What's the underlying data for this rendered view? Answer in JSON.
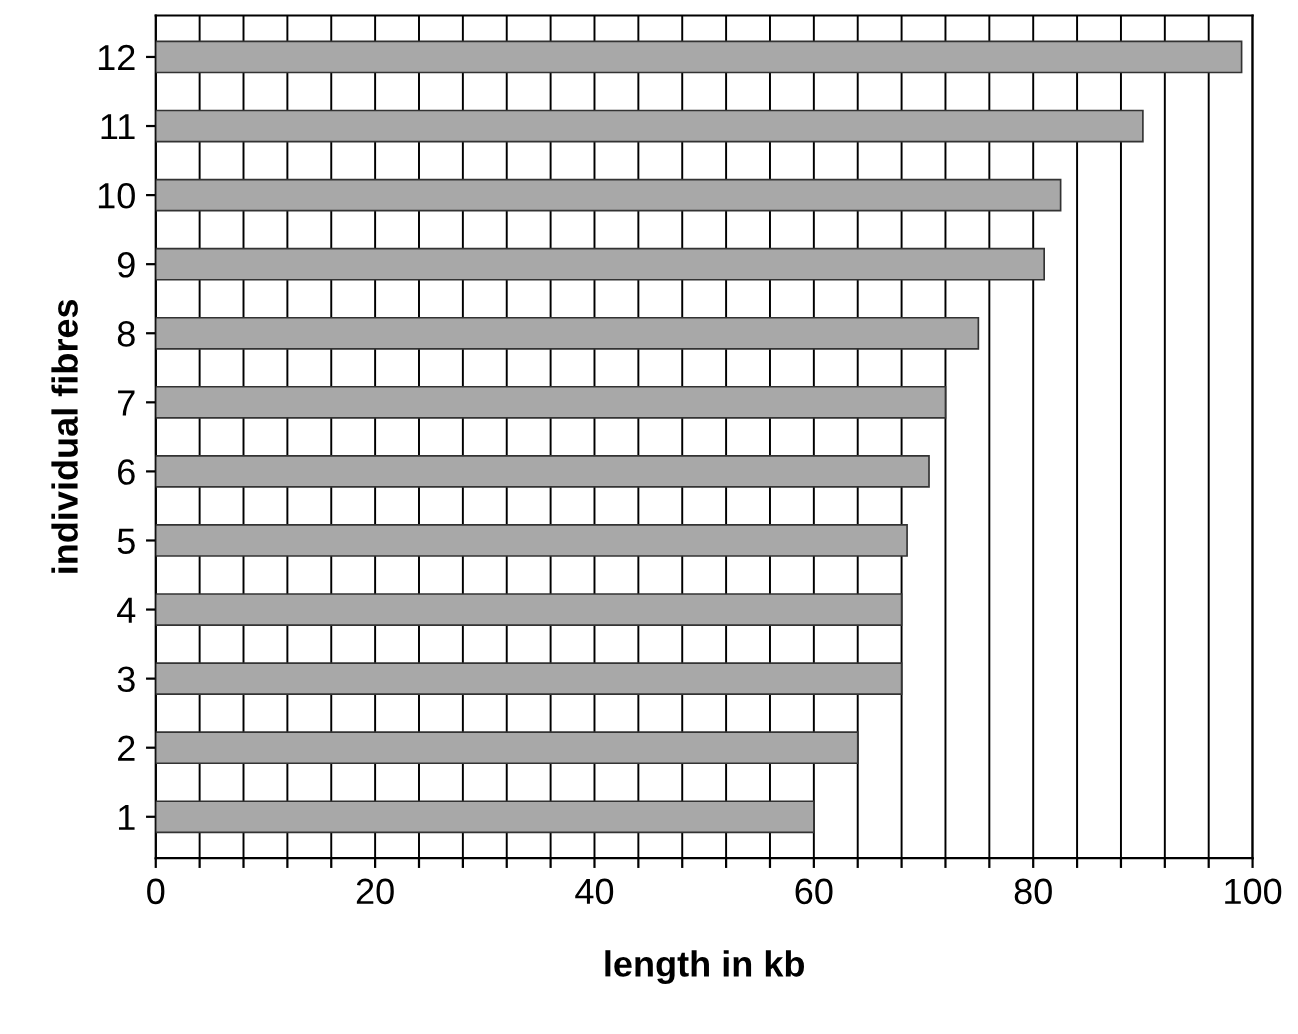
{
  "chart_data": {
    "type": "bar",
    "orientation": "horizontal",
    "xlabel": "length in kb",
    "ylabel": "individual fibres",
    "categories": [
      "12",
      "11",
      "10",
      "9",
      "8",
      "7",
      "6",
      "5",
      "4",
      "3",
      "2",
      "1"
    ],
    "values": [
      99,
      90,
      82.5,
      81,
      75,
      72,
      70.5,
      68.5,
      68,
      68,
      64,
      60
    ],
    "color": "#a8a8a8",
    "xlim": [
      0,
      100
    ],
    "xticks": [
      0,
      {
        "value": 4,
        "label": null
      },
      {
        "value": 8,
        "label": null
      },
      {
        "value": 12,
        "label": null
      },
      {
        "value": 16,
        "label": null
      },
      20,
      {
        "value": 24,
        "label": null
      },
      {
        "value": 28,
        "label": null
      },
      {
        "value": 32,
        "label": null
      },
      {
        "value": 36,
        "label": null
      },
      40,
      {
        "value": 44,
        "label": null
      },
      {
        "value": 48,
        "label": null
      },
      {
        "value": 52,
        "label": null
      },
      {
        "value": 56,
        "label": null
      },
      60,
      {
        "value": 64,
        "label": null
      },
      {
        "value": 68,
        "label": null
      },
      {
        "value": 72,
        "label": null
      },
      {
        "value": 76,
        "label": null
      },
      80,
      {
        "value": 84,
        "label": null
      },
      {
        "value": 88,
        "label": null
      },
      {
        "value": 92,
        "label": null
      },
      {
        "value": 96,
        "label": null
      },
      100
    ],
    "grid": "x"
  }
}
